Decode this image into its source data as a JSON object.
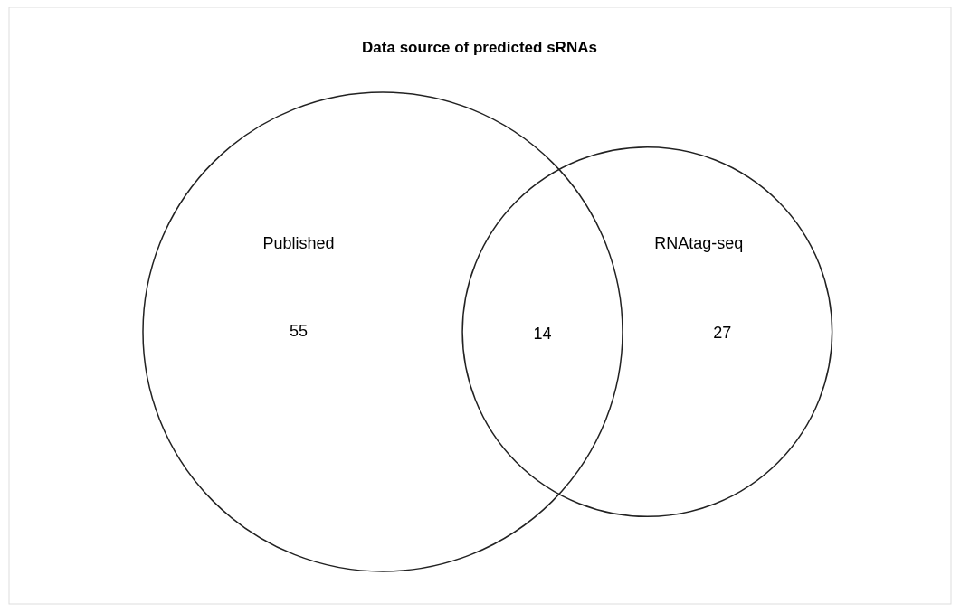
{
  "chart_data": {
    "type": "other",
    "title": "Data source of predicted sRNAs",
    "categories": [
      "Published",
      null,
      "RNAtag-seq"
    ],
    "values": [
      55,
      14,
      27
    ],
    "value_labels": [
      "55",
      "14",
      "27"
    ]
  }
}
